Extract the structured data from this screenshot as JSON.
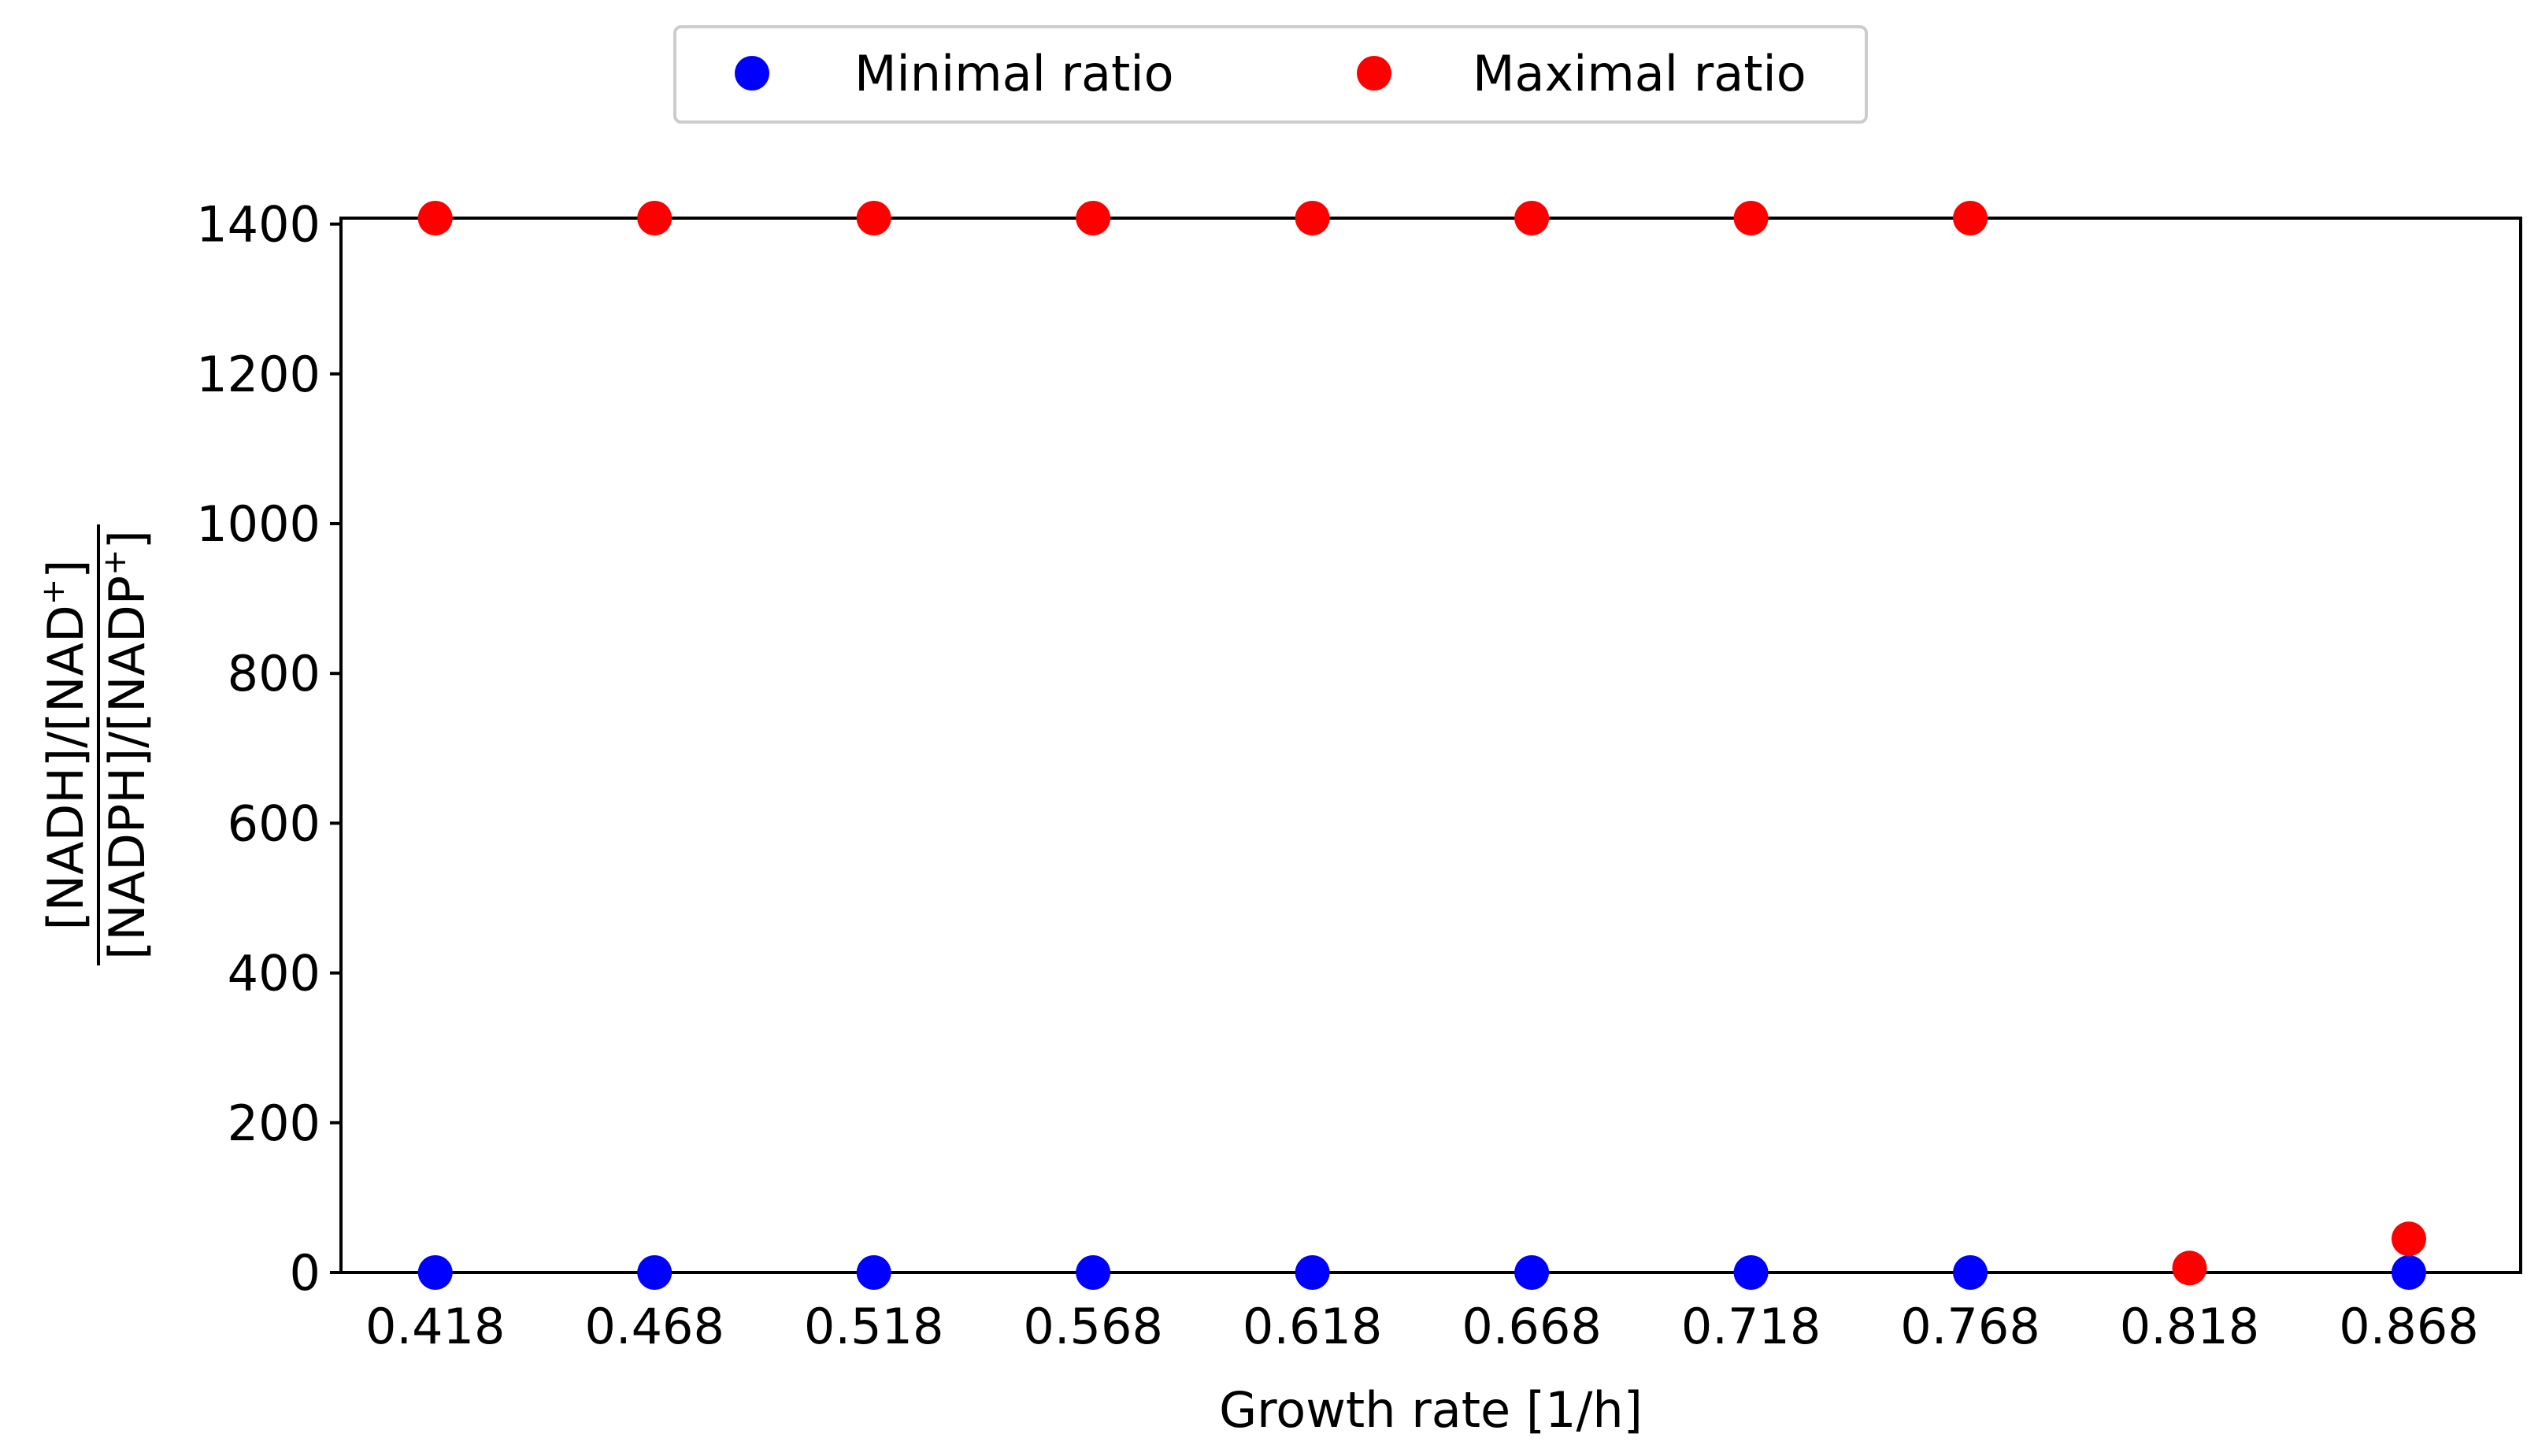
{
  "chart_data": {
    "type": "scatter",
    "categories": [
      "0.418",
      "0.468",
      "0.518",
      "0.568",
      "0.618",
      "0.668",
      "0.718",
      "0.768",
      "0.818",
      "0.868"
    ],
    "x": [
      0.418,
      0.468,
      0.518,
      0.568,
      0.618,
      0.668,
      0.718,
      0.768,
      0.818,
      0.868
    ],
    "series": [
      {
        "name": "Minimal ratio",
        "color": "#0000ff",
        "values": [
          0,
          0,
          0,
          0,
          0,
          0,
          0,
          0,
          null,
          0
        ]
      },
      {
        "name": "Maximal ratio",
        "color": "#ff0000",
        "values": [
          1408,
          1408,
          1408,
          1408,
          1408,
          1408,
          1408,
          1408,
          6,
          45
        ]
      }
    ],
    "xlabel": "Growth rate [1/h]",
    "ylabel": {
      "numerator": "[NADH]/[NAD",
      "numerator_sup": "+",
      "numerator_end": "]",
      "denominator": "[NADPH]/[NADP",
      "denominator_sup": "+",
      "denominator_end": "]"
    },
    "yticks": [
      0,
      200,
      400,
      600,
      800,
      1000,
      1200,
      1400
    ],
    "ytick_labels": [
      "0",
      "200",
      "400",
      "600",
      "800",
      "1000",
      "1200",
      "1400"
    ],
    "ylim": [
      0,
      1408
    ],
    "xlim": [
      0.3965,
      0.8935
    ],
    "grid": false,
    "legend": "top-center, outside plot, 2 columns"
  }
}
